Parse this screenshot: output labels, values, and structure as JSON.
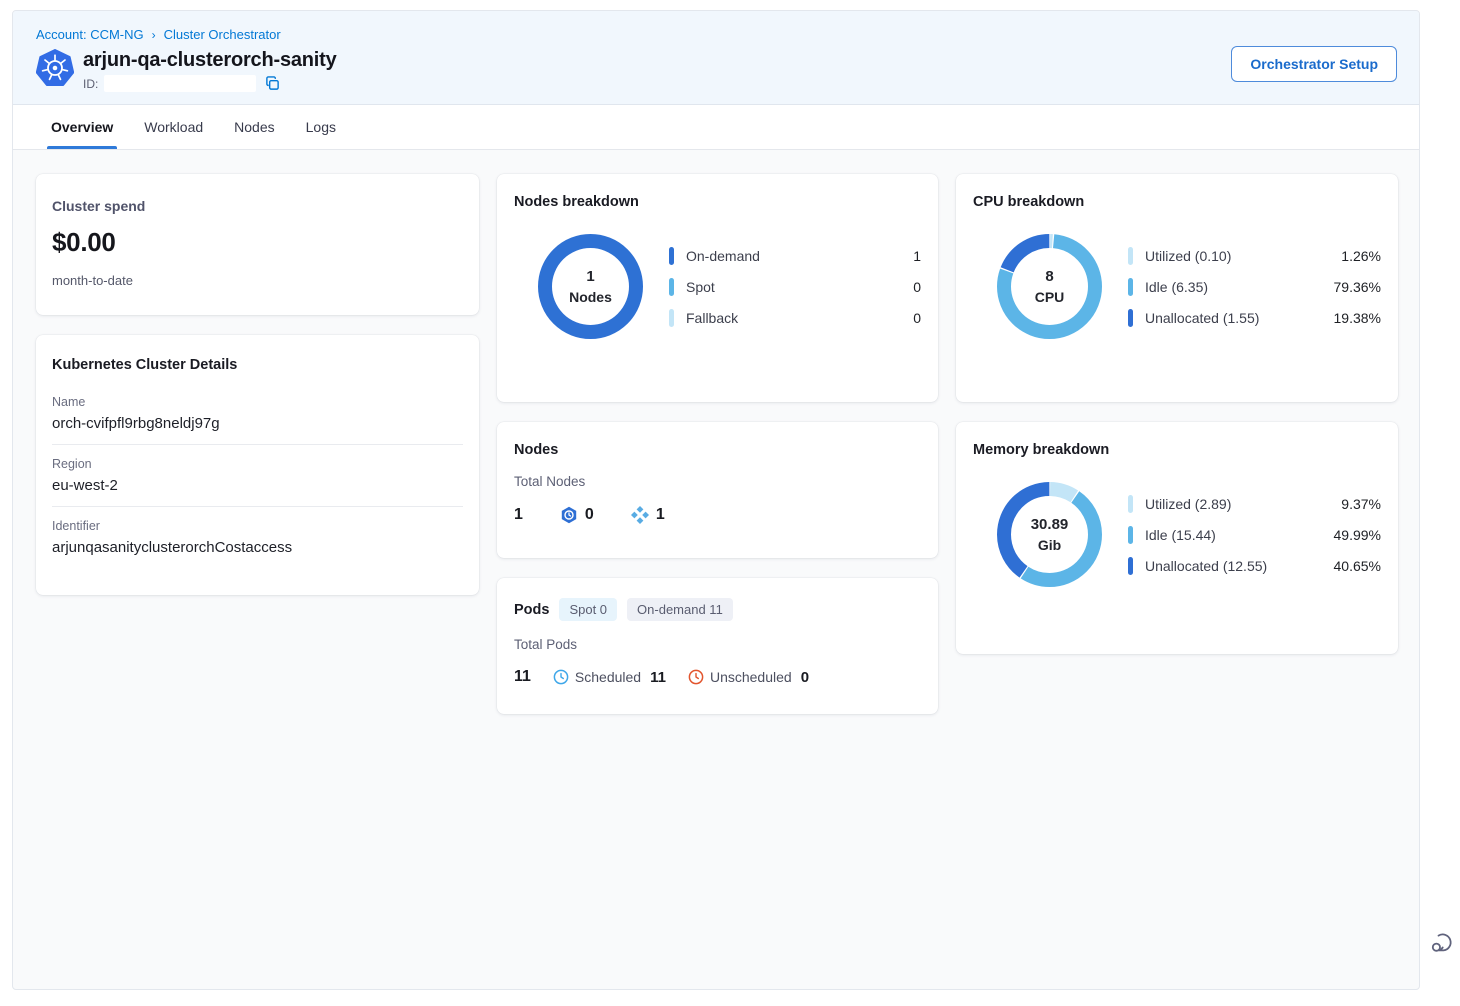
{
  "header": {
    "breadcrumb": {
      "account": "Account: CCM-NG",
      "separator": "›",
      "section": "Cluster Orchestrator"
    },
    "title": "arjun-qa-clusterorch-sanity",
    "id_label": "ID:",
    "id_value": "",
    "setup_button": "Orchestrator Setup"
  },
  "tabs": [
    {
      "label": "Overview",
      "active": true
    },
    {
      "label": "Workload",
      "active": false
    },
    {
      "label": "Nodes",
      "active": false
    },
    {
      "label": "Logs",
      "active": false
    }
  ],
  "cards": {
    "cluster_spend": {
      "title": "Cluster spend",
      "amount": "$0.00",
      "period": "month-to-date"
    },
    "cluster_details": {
      "title": "Kubernetes Cluster Details",
      "fields": [
        {
          "label": "Name",
          "value": "orch-cvifpfl9rbg8neldj97g"
        },
        {
          "label": "Region",
          "value": "eu-west-2"
        },
        {
          "label": "Identifier",
          "value": "arjunqasanityclusterorchCostaccess"
        }
      ]
    },
    "nodes": {
      "title": "Nodes",
      "total_label": "Total Nodes",
      "total": "1",
      "spot_count": "0",
      "ondemand_count": "1"
    },
    "pods": {
      "title": "Pods",
      "badge_spot": "Spot 0",
      "badge_ondemand": "On-demand 11",
      "total_label": "Total Pods",
      "total": "11",
      "scheduled_label": "Scheduled",
      "scheduled_value": "11",
      "unscheduled_label": "Unscheduled",
      "unscheduled_value": "0"
    }
  },
  "colors": {
    "accent": "#0278D5",
    "donut_dark": "#2F6FD4",
    "donut_medium": "#5CB5E7",
    "donut_light": "#C3E5F7",
    "scheduled_icon": "#3FA7E9",
    "unscheduled_icon": "#E2552E"
  },
  "chart_data": [
    {
      "type": "donut",
      "title": "Nodes breakdown",
      "center": {
        "value": "1",
        "label": "Nodes"
      },
      "legend_position": "right",
      "segments": [
        {
          "label": "On-demand",
          "value": 1,
          "pct": 100,
          "display_label": "On-demand",
          "value_text": "1",
          "color": "#2E71D4"
        },
        {
          "label": "Spot",
          "value": 0,
          "pct": 0,
          "display_label": "Spot",
          "value_text": "0",
          "color": "#5CB5E7"
        },
        {
          "label": "Fallback",
          "value": 0,
          "pct": 0,
          "display_label": "Fallback",
          "value_text": "0",
          "color": "#C3E5F7"
        }
      ]
    },
    {
      "type": "donut",
      "title": "CPU breakdown",
      "center": {
        "value": "8",
        "label": "CPU"
      },
      "legend_position": "right",
      "segments": [
        {
          "label": "Utilized",
          "value": 0.1,
          "pct": 1.26,
          "display_label": "Utilized (0.10)",
          "value_text": "1.26%",
          "color": "#C3E5F7"
        },
        {
          "label": "Idle",
          "value": 6.35,
          "pct": 79.36,
          "display_label": "Idle (6.35)",
          "value_text": "79.36%",
          "color": "#5CB5E7"
        },
        {
          "label": "Unallocated",
          "value": 1.55,
          "pct": 19.38,
          "display_label": "Unallocated (1.55)",
          "value_text": "19.38%",
          "color": "#2F6FD4"
        }
      ]
    },
    {
      "type": "donut",
      "title": "Memory breakdown",
      "center": {
        "value": "30.89",
        "label": "Gib"
      },
      "legend_position": "right",
      "segments": [
        {
          "label": "Utilized",
          "value": 2.89,
          "pct": 9.37,
          "display_label": "Utilized (2.89)",
          "value_text": "9.37%",
          "color": "#C3E5F7"
        },
        {
          "label": "Idle",
          "value": 15.44,
          "pct": 49.99,
          "display_label": "Idle (15.44)",
          "value_text": "49.99%",
          "color": "#5CB5E7"
        },
        {
          "label": "Unallocated",
          "value": 12.55,
          "pct": 40.65,
          "display_label": "Unallocated (12.55)",
          "value_text": "40.65%",
          "color": "#2F6FD4"
        }
      ]
    }
  ]
}
